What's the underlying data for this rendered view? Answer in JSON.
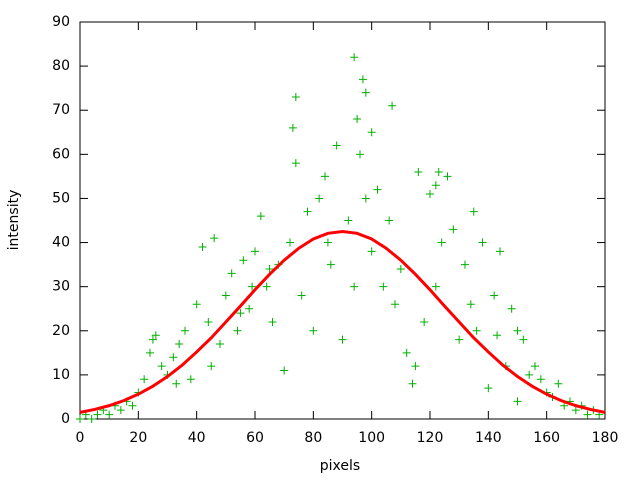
{
  "chart_data": {
    "type": "scatter",
    "x_label": "pixels",
    "y_label": "intensity",
    "xlim": [
      0,
      180
    ],
    "xticks": [
      0,
      20,
      40,
      60,
      80,
      100,
      120,
      140,
      160,
      180
    ],
    "ylim": [
      0,
      90
    ],
    "yticks": [
      0,
      10,
      20,
      30,
      40,
      50,
      60,
      70,
      80,
      90
    ],
    "grid": false,
    "series": [
      {
        "style": "points",
        "color": "#00b000",
        "x": [
          0,
          2,
          4,
          6,
          8,
          10,
          12,
          14,
          16,
          18,
          20,
          22,
          24,
          26,
          28,
          30,
          32,
          34,
          36,
          38,
          40,
          42,
          44,
          46,
          48,
          50,
          52,
          54,
          56,
          58,
          60,
          62,
          64,
          66,
          68,
          70,
          72,
          74,
          76,
          78,
          80,
          82,
          84,
          86,
          88,
          90,
          92,
          94,
          96,
          98,
          100,
          102,
          104,
          106,
          108,
          110,
          112,
          114,
          116,
          118,
          120,
          122,
          124,
          126,
          128,
          130,
          132,
          134,
          136,
          138,
          140,
          142,
          144,
          146,
          148,
          150,
          152,
          154,
          156,
          158,
          160,
          162,
          164,
          166,
          168,
          170,
          172,
          174,
          176,
          178,
          94,
          97,
          98,
          74,
          107,
          73,
          95,
          122,
          59,
          45,
          150,
          123,
          55,
          65,
          85,
          100,
          115,
          135,
          143,
          25,
          33
        ],
        "values": [
          0,
          1,
          0,
          1,
          2,
          1,
          3,
          2,
          4,
          3,
          6,
          9,
          15,
          19,
          12,
          10,
          14,
          17,
          20,
          9,
          26,
          39,
          22,
          41,
          17,
          28,
          33,
          20,
          36,
          25,
          38,
          46,
          30,
          22,
          35,
          11,
          40,
          58,
          28,
          47,
          20,
          50,
          55,
          35,
          62,
          18,
          45,
          30,
          60,
          50,
          38,
          52,
          30,
          45,
          26,
          34,
          15,
          8,
          56,
          22,
          51,
          30,
          40,
          55,
          43,
          18,
          35,
          26,
          20,
          40,
          7,
          28,
          38,
          12,
          25,
          20,
          18,
          10,
          12,
          9,
          6,
          5,
          8,
          3,
          4,
          2,
          3,
          1,
          2,
          1,
          82,
          77,
          74,
          73,
          71,
          66,
          68,
          53,
          30,
          12,
          4,
          56,
          24,
          34,
          40,
          65,
          12,
          47,
          19,
          18,
          8
        ]
      },
      {
        "style": "line",
        "color": "#ff0000",
        "x": [
          0,
          5,
          10,
          15,
          20,
          25,
          30,
          35,
          40,
          45,
          50,
          55,
          60,
          65,
          70,
          75,
          80,
          85,
          90,
          95,
          100,
          105,
          110,
          115,
          120,
          125,
          130,
          135,
          140,
          145,
          150,
          155,
          160,
          165,
          170,
          175,
          180
        ],
        "values": [
          1.5,
          2.16,
          3.03,
          4.17,
          5.63,
          7.44,
          9.63,
          12.2,
          15.2,
          18.4,
          22.0,
          25.6,
          29.3,
          32.8,
          36.0,
          38.7,
          40.8,
          42.1,
          42.5,
          42.1,
          40.8,
          38.7,
          36.0,
          32.8,
          29.3,
          25.6,
          22.0,
          18.4,
          15.2,
          12.2,
          9.63,
          7.44,
          5.63,
          4.17,
          3.03,
          2.16,
          1.5
        ]
      }
    ]
  }
}
